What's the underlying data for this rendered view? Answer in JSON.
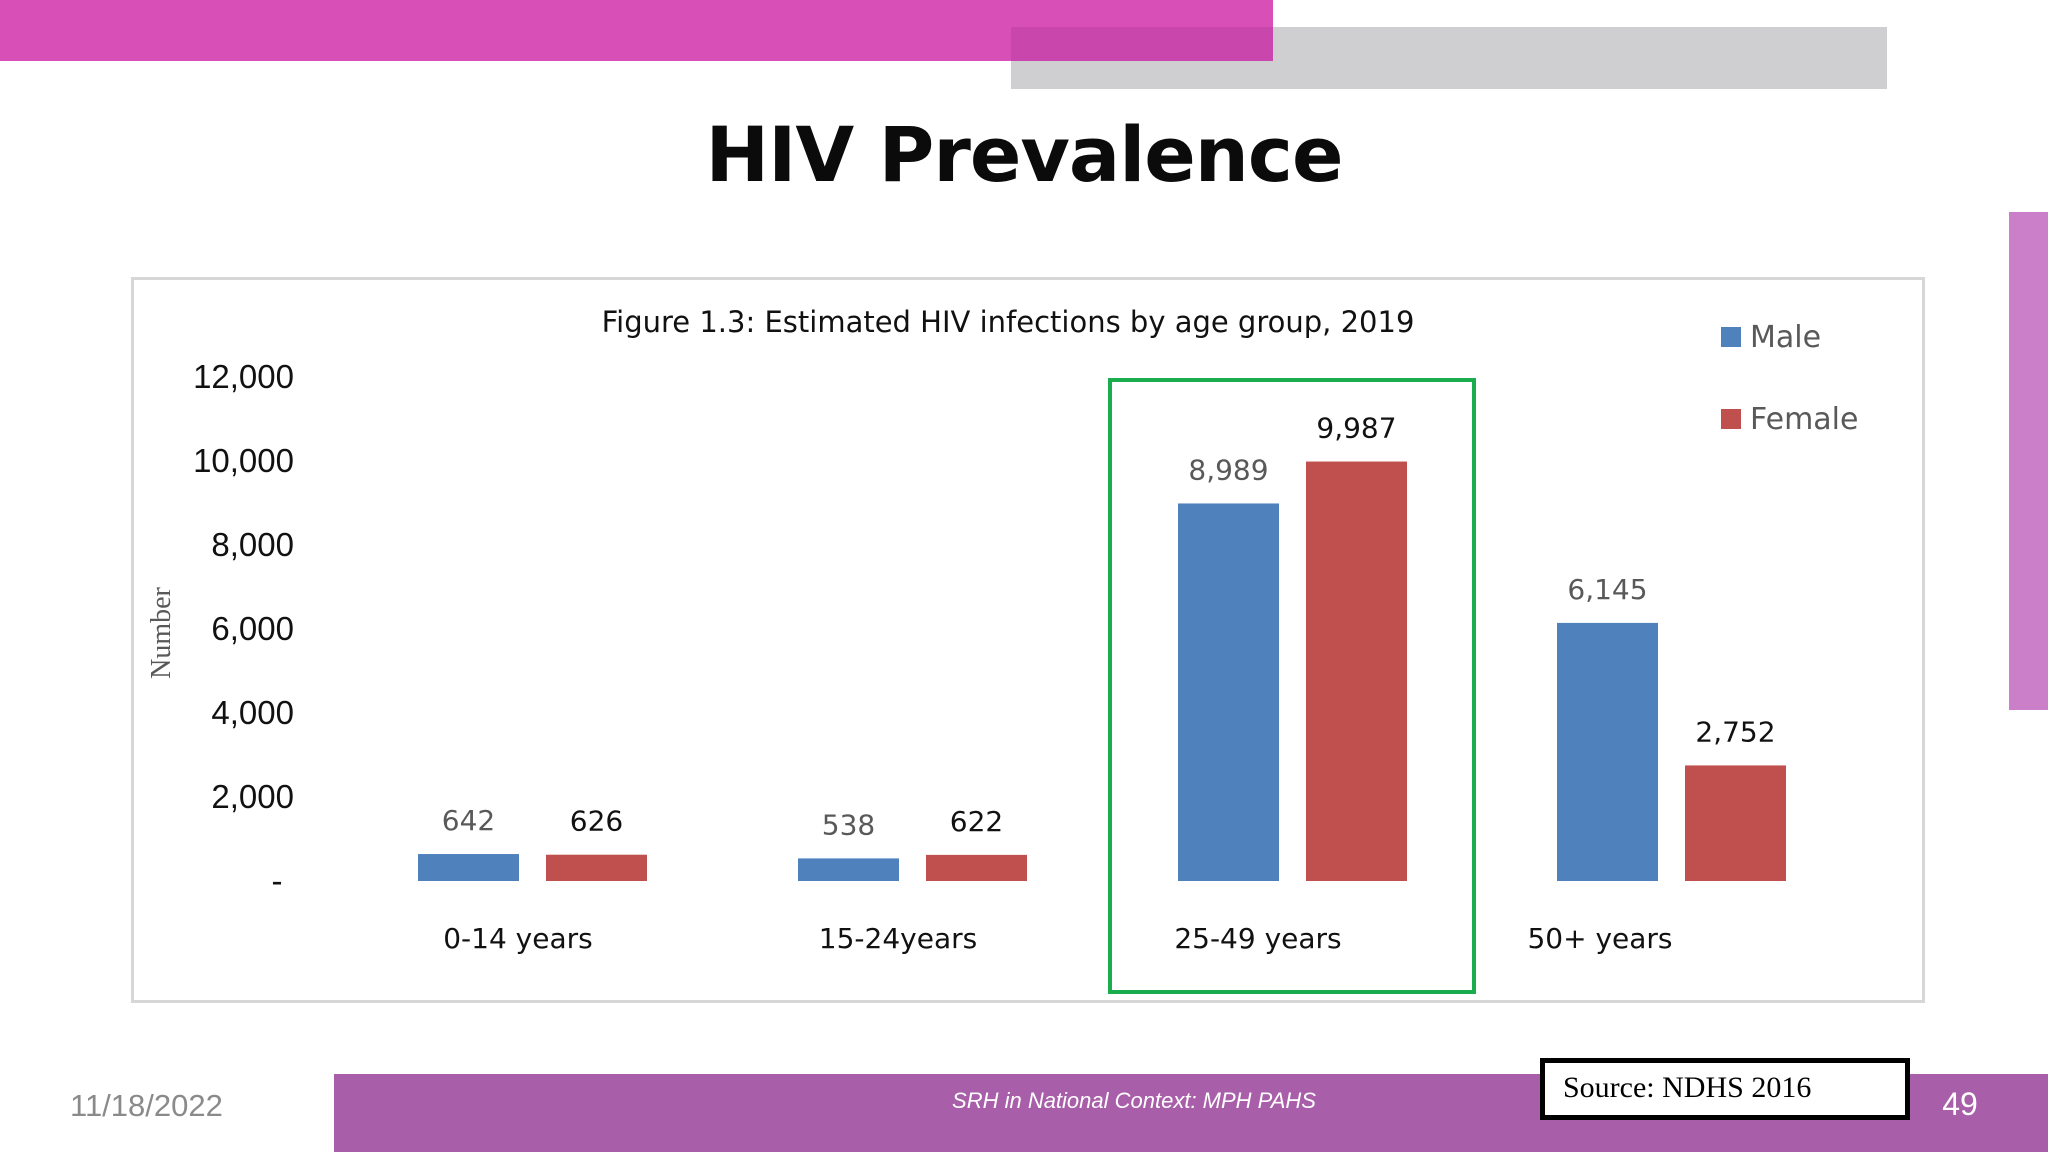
{
  "slide": {
    "title": "HIV Prevalence",
    "footer_date": "11/18/2022",
    "footer_text": "SRH in National Context: MPH PAHS",
    "page_number": "49",
    "source": "Source: NDHS 2016"
  },
  "colors": {
    "male": "#4f81bd",
    "female": "#c0504d",
    "highlight": "#1aad4d"
  },
  "chart_data": {
    "type": "bar",
    "title": "Figure 1.3: Estimated HIV infections by age group, 2019",
    "ylabel": "Number",
    "xlabel": "",
    "categories": [
      "0-14 years",
      "15-24years",
      "25-49 years",
      "50+ years"
    ],
    "series": [
      {
        "name": "Male",
        "values": [
          642,
          538,
          8989,
          6145
        ],
        "labels": [
          "642",
          "538",
          "8,989",
          "6,145"
        ]
      },
      {
        "name": "Female",
        "values": [
          626,
          622,
          9987,
          2752
        ],
        "labels": [
          "626",
          "622",
          "9,987",
          "2,752"
        ]
      }
    ],
    "ylim": [
      0,
      12000
    ],
    "yticks": [
      0,
      2000,
      4000,
      6000,
      8000,
      10000,
      12000
    ],
    "ytick_labels": [
      "-",
      "2,000",
      "4,000",
      "6,000",
      "8,000",
      "10,000",
      "12,000"
    ],
    "grid": false,
    "legend": "top-right",
    "highlighted_category": "25-49 years"
  }
}
